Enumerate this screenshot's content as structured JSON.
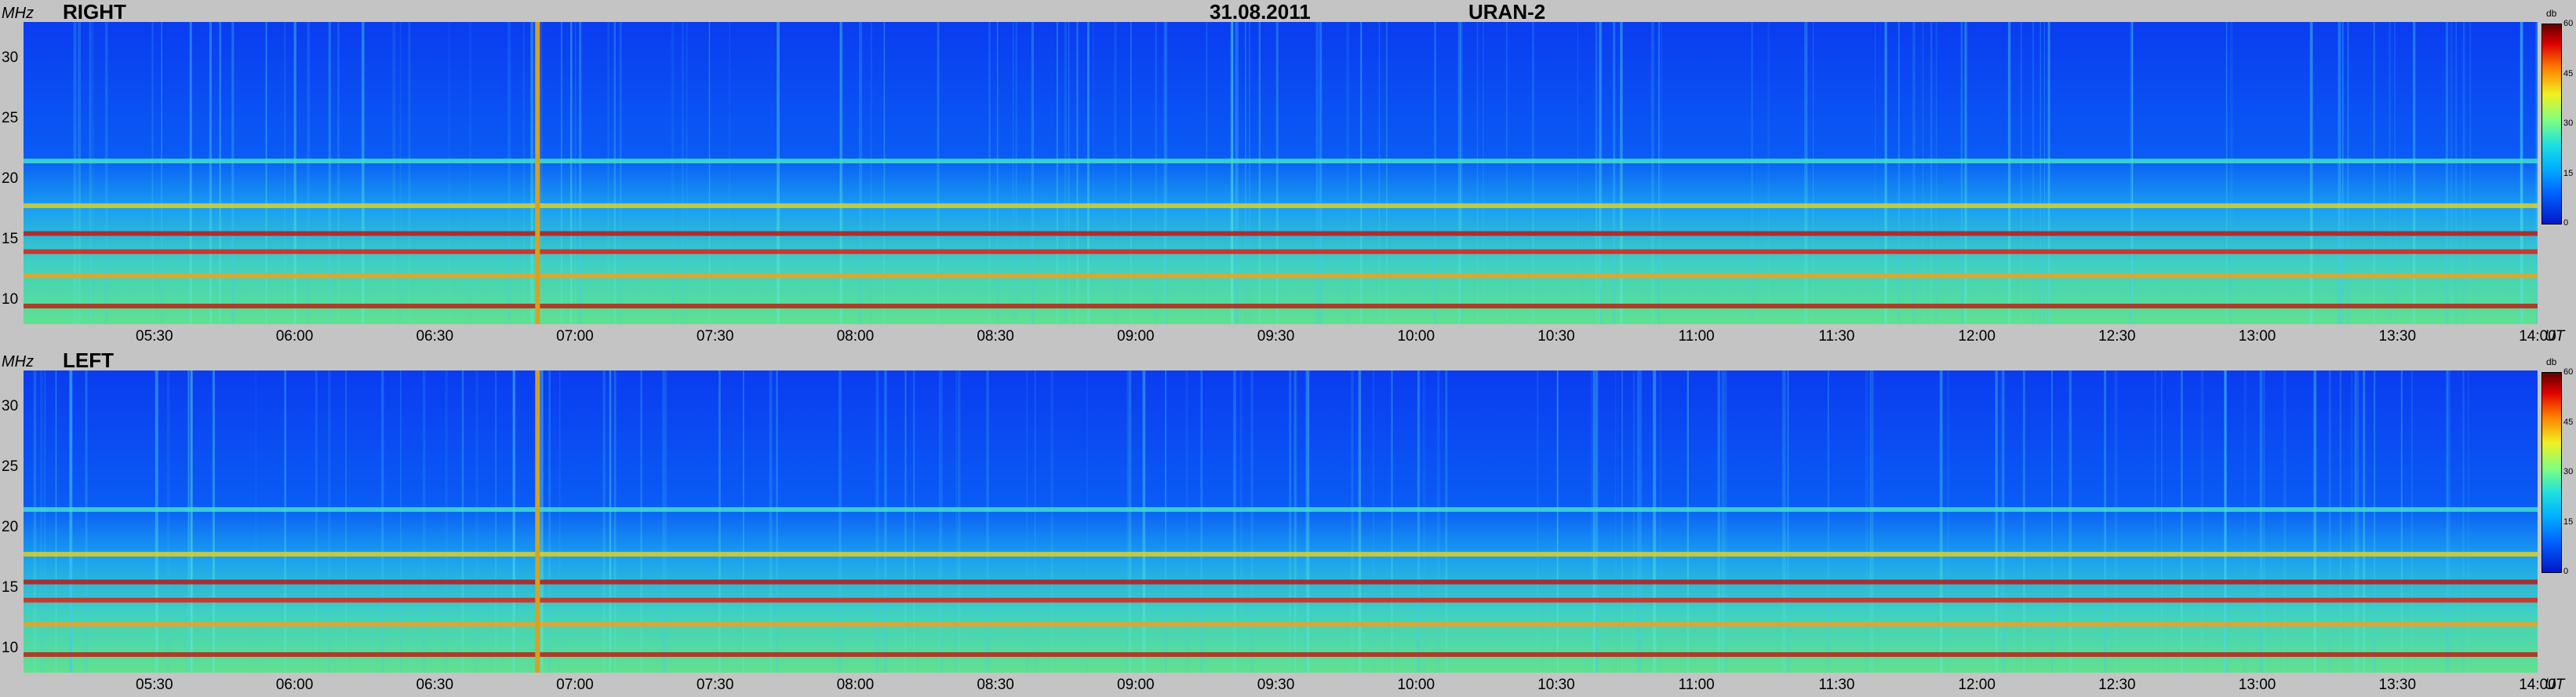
{
  "header": {
    "date": "31.08.2011",
    "instrument": "URAN-2"
  },
  "panels": [
    {
      "label": "RIGHT",
      "yunit": "MHz",
      "xunit": "UT"
    },
    {
      "label": "LEFT",
      "yunit": "MHz",
      "xunit": "UT"
    }
  ],
  "colorbar": {
    "unit": "db",
    "ticks": [
      "60",
      "45",
      "30",
      "15",
      "0"
    ]
  },
  "colors": {
    "background": "#c4c4c4",
    "marker": "#d8a020",
    "low": "#0040e0"
  },
  "chart_data": {
    "type": "heatmap",
    "title": "31.08.2011 URAN-2",
    "xlabel": "UT",
    "ylabel": "MHz",
    "x_ticks": [
      "05:30",
      "06:00",
      "06:30",
      "07:00",
      "07:30",
      "08:00",
      "08:30",
      "09:00",
      "09:30",
      "10:00",
      "10:30",
      "11:00",
      "11:30",
      "12:00",
      "12:30",
      "13:00",
      "13:30",
      "14:00"
    ],
    "y_ticks": [
      10,
      15,
      20,
      25,
      30
    ],
    "xlim_minutes_ut": [
      302,
      840
    ],
    "ylim_mhz": [
      8,
      33
    ],
    "clim_db": [
      0,
      60
    ],
    "vertical_marker_ut": "06:52",
    "interference_bands_mhz": [
      9.5,
      12.0,
      14.0,
      15.5,
      17.8,
      21.5
    ],
    "series": [
      {
        "name": "RIGHT"
      },
      {
        "name": "LEFT"
      }
    ]
  }
}
